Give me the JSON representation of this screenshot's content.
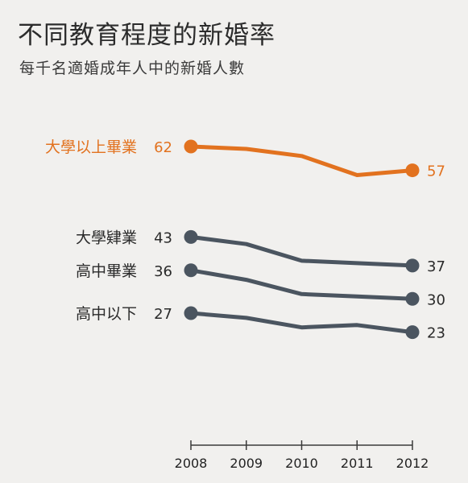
{
  "colors": {
    "highlight": "#e2721f",
    "series": "#4b5560",
    "axis": "#3a3a3a",
    "background": "#f1f0ee"
  },
  "chart_data": {
    "type": "line",
    "title": "不同教育程度的新婚率",
    "subtitle": "每千名適婚成年人中的新婚人數",
    "x": [
      2008,
      2009,
      2010,
      2011,
      2012
    ],
    "ylim": [
      15,
      70
    ],
    "grid": false,
    "legend": "direct labels at line starts",
    "series": [
      {
        "name": "大學以上畢業",
        "values": [
          62,
          61.5,
          60,
          56,
          57
        ],
        "start_label": "62",
        "end_label": "57",
        "highlight": true
      },
      {
        "name": "大學肄業",
        "values": [
          43,
          41.5,
          38,
          37.5,
          37
        ],
        "start_label": "43",
        "end_label": "37",
        "highlight": false
      },
      {
        "name": "高中畢業",
        "values": [
          36,
          34,
          31,
          30.5,
          30
        ],
        "start_label": "36",
        "end_label": "30",
        "highlight": false
      },
      {
        "name": "高中以下",
        "values": [
          27,
          26,
          24,
          24.5,
          23
        ],
        "start_label": "27",
        "end_label": "23",
        "highlight": false
      }
    ]
  }
}
